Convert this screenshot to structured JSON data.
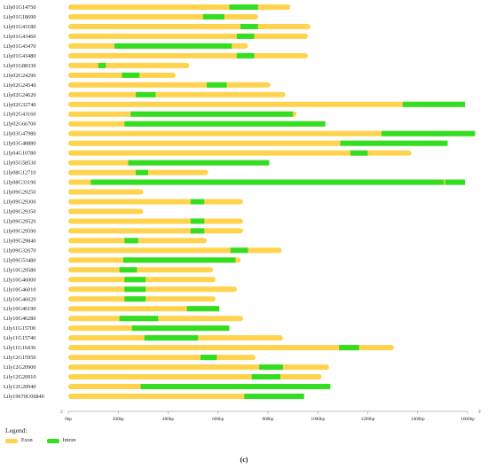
{
  "colors": {
    "exon": "#ffd34d",
    "intron": "#33dd22",
    "axis": "#999999"
  },
  "ends": {
    "left": "5'",
    "right": "3'"
  },
  "legend": {
    "title": "Legend:",
    "exon_label": "Exon",
    "intron_label": "Intron"
  },
  "panel_label": "(c)",
  "chart_data": {
    "type": "gene-structure",
    "xlim": [
      0,
      1600
    ],
    "x_unit": "bp",
    "ticks": [
      "0bp",
      "200bp",
      "400bp",
      "600bp",
      "800bp",
      "1000bp",
      "1200bp",
      "1400bp",
      "1600bp"
    ],
    "tick_values": [
      0,
      200,
      400,
      600,
      800,
      1000,
      1200,
      1400,
      1600
    ],
    "genes": [
      {
        "name": "Lily01G14750",
        "length": 890,
        "introns": [
          [
            645,
            760
          ]
        ]
      },
      {
        "name": "Lily01G18690",
        "length": 760,
        "introns": [
          [
            540,
            625
          ]
        ]
      },
      {
        "name": "Lily01G43180",
        "length": 970,
        "introns": [
          [
            690,
            760
          ]
        ]
      },
      {
        "name": "Lily01G43460",
        "length": 960,
        "introns": [
          [
            675,
            745
          ]
        ]
      },
      {
        "name": "Lily01G43470",
        "length": 720,
        "introns": [
          [
            185,
            655
          ]
        ]
      },
      {
        "name": "Lily01G43480",
        "length": 960,
        "introns": [
          [
            675,
            745
          ]
        ]
      },
      {
        "name": "Lily01G88330",
        "length": 485,
        "introns": [
          [
            120,
            150
          ]
        ]
      },
      {
        "name": "Lily02G24290",
        "length": 430,
        "introns": [
          [
            215,
            285
          ]
        ]
      },
      {
        "name": "Lily02G24540",
        "length": 810,
        "introns": [
          [
            555,
            635
          ]
        ]
      },
      {
        "name": "Lily02G24620",
        "length": 870,
        "introns": [
          [
            270,
            350
          ]
        ]
      },
      {
        "name": "Lily02G32740",
        "length": 1590,
        "introns": [
          [
            1340,
            1590
          ]
        ]
      },
      {
        "name": "Lily02G43160",
        "length": 915,
        "introns": [
          [
            250,
            900
          ]
        ]
      },
      {
        "name": "Lily02G66700",
        "length": 1030,
        "introns": [
          [
            225,
            1030
          ]
        ]
      },
      {
        "name": "Lily03G47980",
        "length": 1630,
        "introns": [
          [
            1255,
            1630
          ]
        ]
      },
      {
        "name": "Lily03G48880",
        "length": 1520,
        "introns": [
          [
            1090,
            1520
          ]
        ]
      },
      {
        "name": "Lily04G10780",
        "length": 1375,
        "introns": [
          [
            1130,
            1200
          ]
        ]
      },
      {
        "name": "Lily05G58530",
        "length": 805,
        "introns": [
          [
            240,
            805
          ]
        ]
      },
      {
        "name": "Lily08G12710",
        "length": 560,
        "introns": [
          [
            270,
            320
          ]
        ]
      },
      {
        "name": "Lily08G33190",
        "length": 1590,
        "introns": [
          [
            90,
            1505
          ],
          [
            1510,
            1590
          ]
        ]
      },
      {
        "name": "Lily09G29250",
        "length": 300,
        "introns": []
      },
      {
        "name": "Lily09G29300",
        "length": 700,
        "introns": [
          [
            490,
            545
          ]
        ]
      },
      {
        "name": "Lily09G29350",
        "length": 300,
        "introns": []
      },
      {
        "name": "Lily09G29520",
        "length": 700,
        "introns": [
          [
            490,
            545
          ]
        ]
      },
      {
        "name": "Lily09G29590",
        "length": 700,
        "introns": [
          [
            490,
            545
          ]
        ]
      },
      {
        "name": "Lily09G29840",
        "length": 555,
        "introns": [
          [
            225,
            280
          ]
        ]
      },
      {
        "name": "Lily09G32670",
        "length": 855,
        "introns": [
          [
            650,
            720
          ]
        ]
      },
      {
        "name": "Lily09G53480",
        "length": 690,
        "introns": [
          [
            220,
            670
          ]
        ]
      },
      {
        "name": "Lily10G29580",
        "length": 580,
        "introns": [
          [
            205,
            275
          ]
        ]
      },
      {
        "name": "Lily10G46000",
        "length": 590,
        "introns": [
          [
            225,
            310
          ]
        ]
      },
      {
        "name": "Lily10G46010",
        "length": 675,
        "introns": [
          [
            225,
            310
          ]
        ]
      },
      {
        "name": "Lily10G46020",
        "length": 590,
        "introns": [
          [
            225,
            310
          ]
        ]
      },
      {
        "name": "Lily10G46190",
        "length": 605,
        "introns": [
          [
            475,
            605
          ]
        ]
      },
      {
        "name": "Lily10G46280",
        "length": 700,
        "introns": [
          [
            205,
            360
          ]
        ]
      },
      {
        "name": "Lily11G15700",
        "length": 645,
        "introns": [
          [
            255,
            645
          ]
        ]
      },
      {
        "name": "Lily11G15740",
        "length": 860,
        "introns": [
          [
            305,
            520
          ]
        ]
      },
      {
        "name": "Lily11G16430",
        "length": 1305,
        "introns": [
          [
            1085,
            1165
          ]
        ]
      },
      {
        "name": "Lily12G15950",
        "length": 750,
        "introns": [
          [
            530,
            595
          ]
        ]
      },
      {
        "name": "Lily12G20900",
        "length": 1045,
        "introns": [
          [
            765,
            860
          ]
        ]
      },
      {
        "name": "Lily12G20910",
        "length": 1015,
        "introns": [
          [
            735,
            850
          ]
        ]
      },
      {
        "name": "Lily12G20940",
        "length": 1050,
        "introns": [
          [
            290,
            1050
          ]
        ]
      },
      {
        "name": "Lily19670U06840",
        "length": 945,
        "introns": [
          [
            705,
            945
          ]
        ]
      }
    ]
  }
}
